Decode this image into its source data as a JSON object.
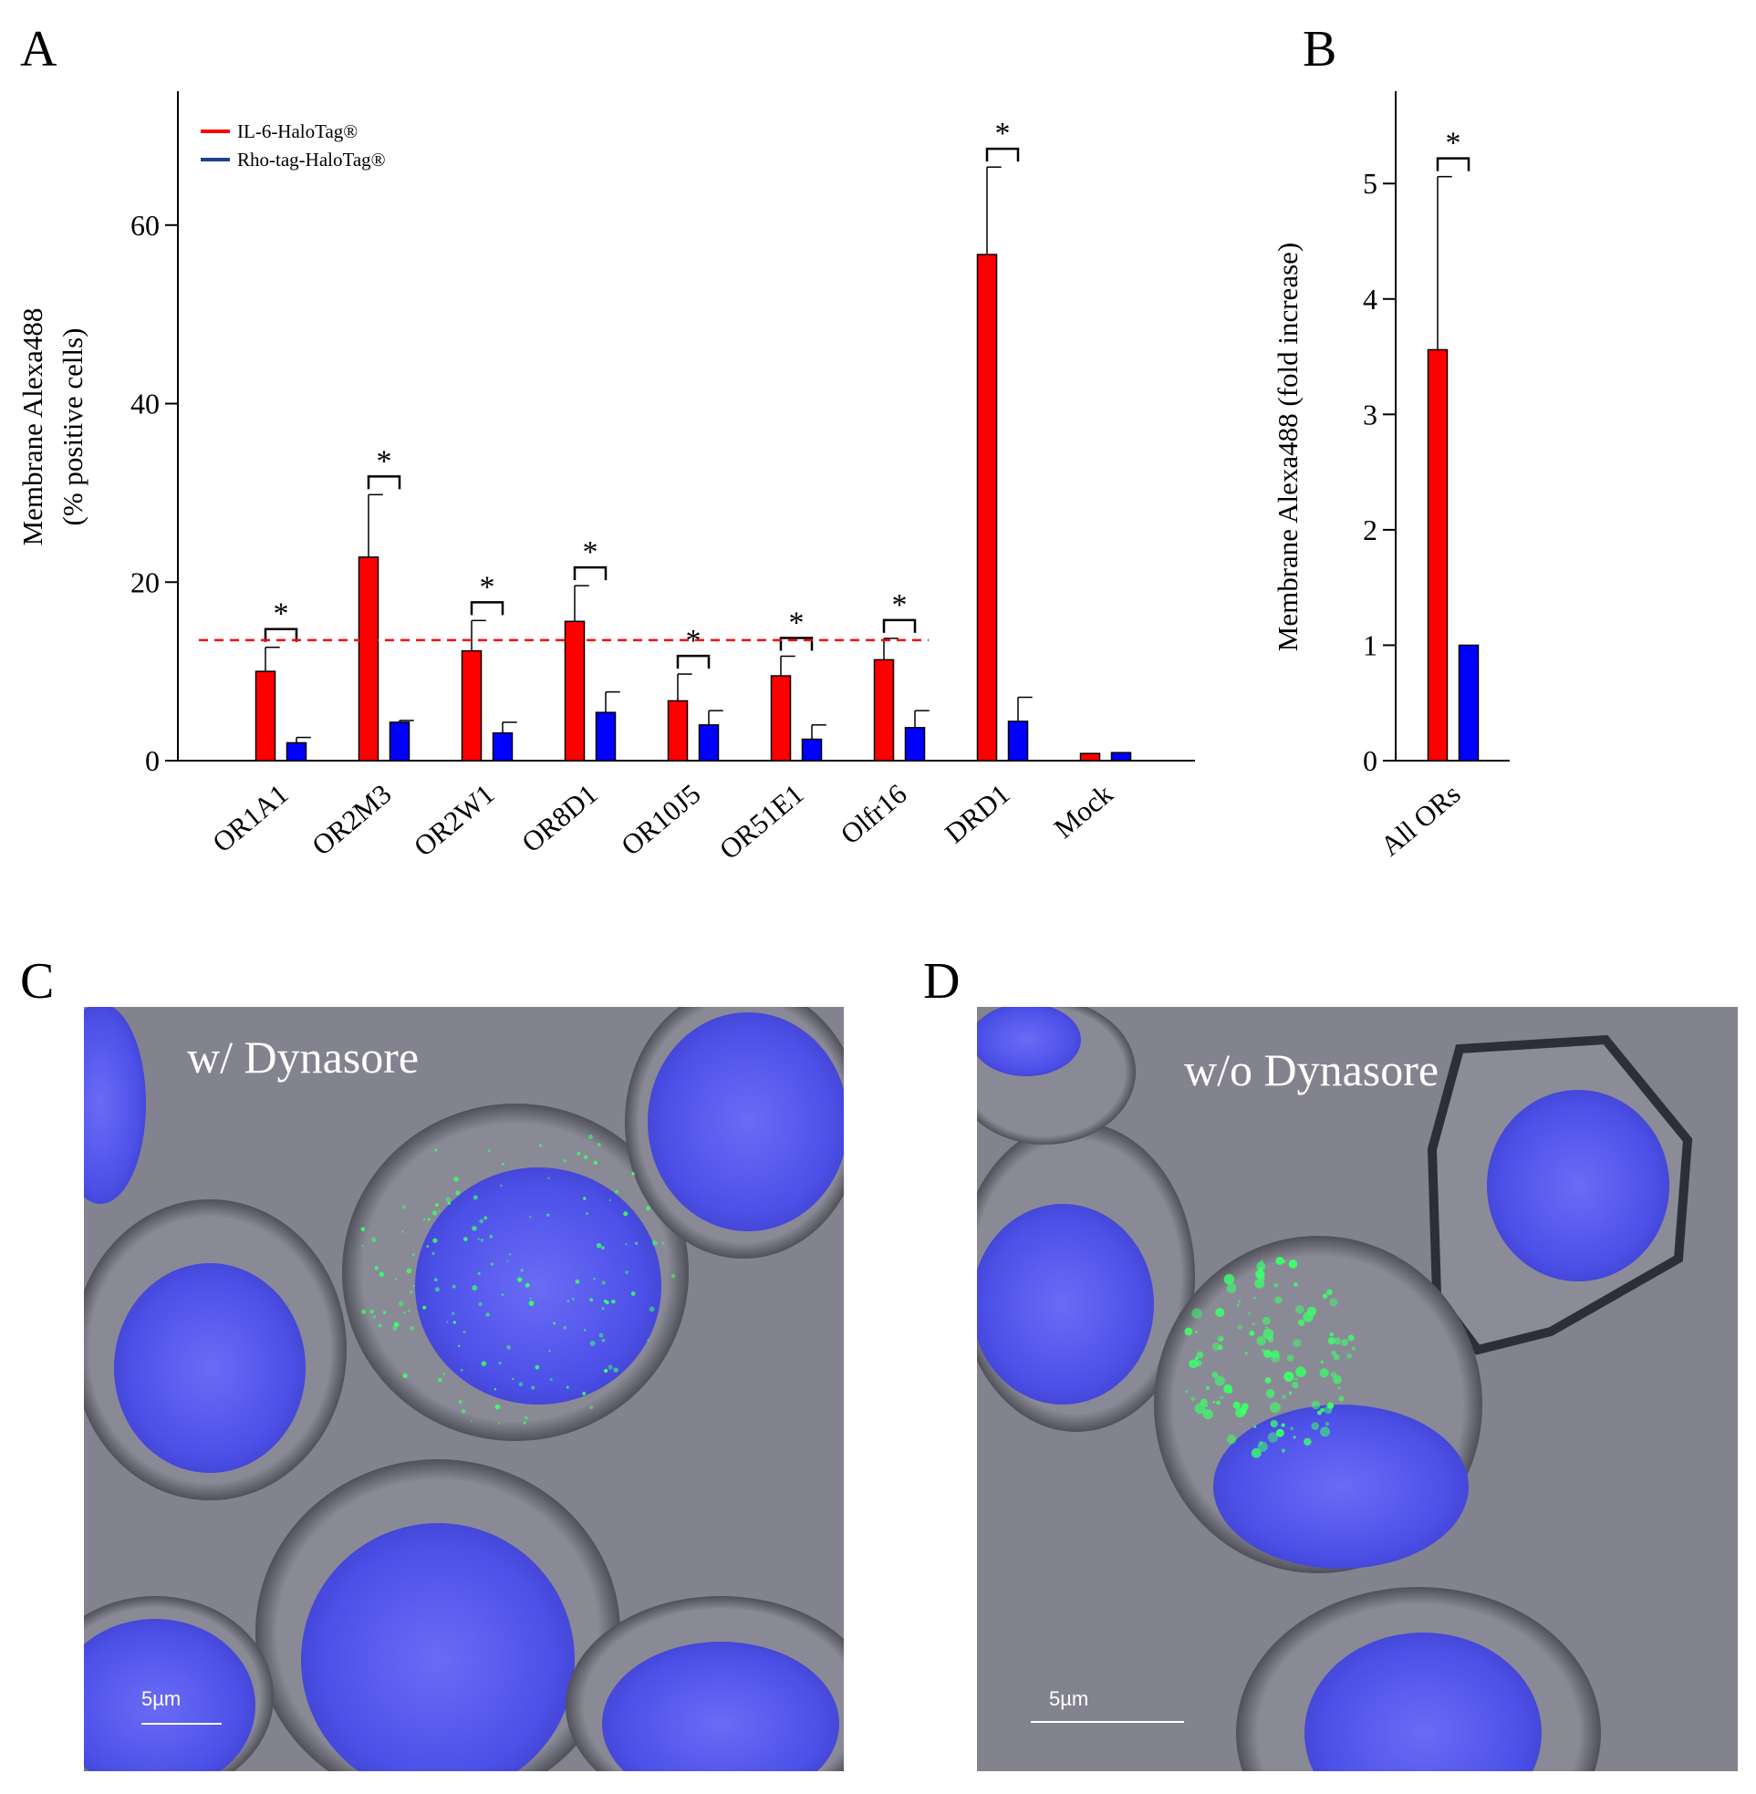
{
  "panel_letters": {
    "a": "A",
    "b": "B",
    "c": "C",
    "d": "D"
  },
  "colors": {
    "il6": "#ff0000",
    "rho": "#0000ff",
    "rho_legend": "#1f3f8f",
    "threshold": "#ff0000"
  },
  "chart_data": [
    {
      "type": "bar",
      "panel": "A",
      "ylabel_lines": [
        "Membrane Alexa488",
        "(% positive cells)"
      ],
      "ylim": [
        0,
        75
      ],
      "yticks": [
        0,
        20,
        40,
        60
      ],
      "categories": [
        "OR1A1",
        "OR2M3",
        "OR2W1",
        "OR8D1",
        "OR10J5",
        "OR51E1",
        "Olfr16",
        "DRD1",
        "Mock"
      ],
      "series": [
        {
          "name": "IL-6-HaloTag®",
          "color": "#ff0000",
          "values": [
            10,
            22.8,
            12.3,
            15.6,
            6.7,
            9.5,
            11.3,
            56.7,
            0.8
          ],
          "errors": [
            2.7,
            7.0,
            3.4,
            4.0,
            3.0,
            2.2,
            2.4,
            9.8,
            0
          ]
        },
        {
          "name": "Rho-tag-HaloTag®",
          "color": "#0000ff",
          "values": [
            2.0,
            4.3,
            3.1,
            5.4,
            4.0,
            2.4,
            3.7,
            4.4,
            0.9
          ],
          "errors": [
            0.6,
            0.2,
            1.2,
            2.3,
            1.6,
            1.6,
            1.9,
            2.7,
            0
          ]
        }
      ],
      "significance": [
        "*",
        "*",
        "*",
        "*",
        "*",
        "*",
        "*",
        "*",
        ""
      ],
      "threshold": 13.5,
      "legend_position": "top-left"
    },
    {
      "type": "bar",
      "panel": "B",
      "ylabel": "Membrane Alexa488 (fold increase)",
      "ylim": [
        0,
        5.8
      ],
      "yticks": [
        0,
        1,
        2,
        3,
        4,
        5
      ],
      "categories": [
        "All ORs"
      ],
      "series": [
        {
          "name": "IL-6-HaloTag®",
          "color": "#ff0000",
          "values": [
            3.56
          ],
          "errors": [
            1.5
          ]
        },
        {
          "name": "Rho-tag-HaloTag®",
          "color": "#0000ff",
          "values": [
            1.0
          ],
          "errors": [
            0
          ]
        }
      ],
      "significance": [
        "*"
      ]
    }
  ],
  "micrographs": {
    "c": {
      "label": "w/ Dynasore",
      "scale": "5µm"
    },
    "d": {
      "label": "w/o Dynasore",
      "scale": "5µm"
    }
  }
}
